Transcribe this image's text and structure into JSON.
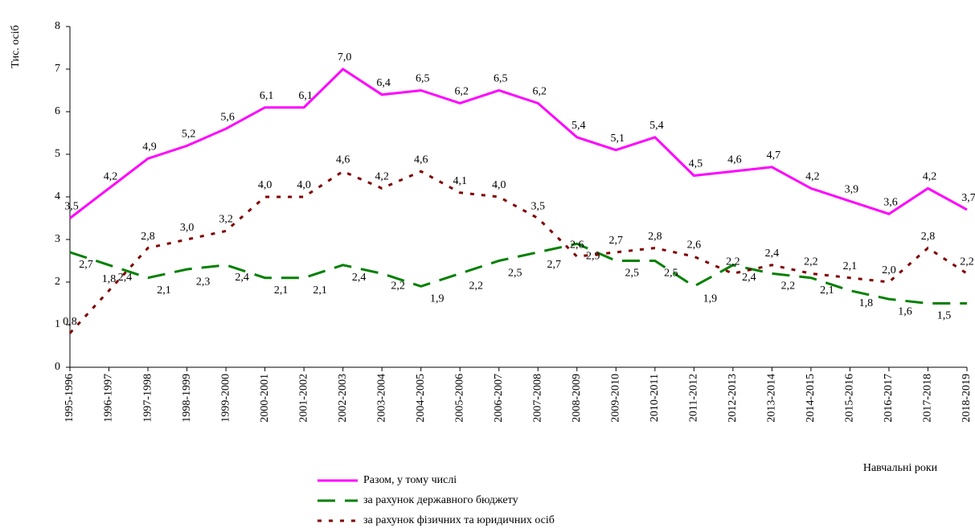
{
  "chart_data": {
    "type": "line",
    "y_label": "Тис. осіб",
    "x_label": "Навчальні роки",
    "categories": [
      "1995-1996",
      "1996-1997",
      "1997-1998",
      "1998-1999",
      "1999-2000",
      "2000-2001",
      "2001-2002",
      "2002-2003",
      "2003-2004",
      "2004-2005",
      "2005-2006",
      "2006-2007",
      "2007-2008",
      "2008-2009",
      "2009-2010",
      "2010-2011",
      "2011-2012",
      "2012-2013",
      "2013-2014",
      "2014-2015",
      "2015-2016",
      "2016-2017",
      "2017-2018",
      "2018-2019"
    ],
    "series": [
      {
        "name": "Разом, у тому числі",
        "color": "#ff00ff",
        "dash": "solid",
        "values": [
          3.5,
          4.2,
          4.9,
          5.2,
          5.6,
          6.1,
          6.1,
          7.0,
          6.4,
          6.5,
          6.2,
          6.5,
          6.2,
          5.4,
          5.1,
          5.4,
          4.5,
          4.6,
          4.7,
          4.2,
          3.9,
          3.6,
          4.2,
          3.7
        ],
        "value_labels": [
          "3,5",
          "4,2",
          "4,9",
          "5,2",
          "5,6",
          "6,1",
          "6,1",
          "7,0",
          "6,4",
          "6,5",
          "6,2",
          "6,5",
          "6,2",
          "5,4",
          "5,1",
          "5,4",
          "4,5",
          "4,6",
          "4,7",
          "4,2",
          "3,9",
          "3,6",
          "4,2",
          "3,7"
        ]
      },
      {
        "name": "за рахунок  державного бюджету",
        "color": "#008000",
        "dash": "long",
        "values": [
          2.7,
          2.4,
          2.1,
          2.3,
          2.4,
          2.1,
          2.1,
          2.4,
          2.2,
          1.9,
          2.2,
          2.5,
          2.7,
          2.9,
          2.5,
          2.5,
          1.9,
          2.4,
          2.2,
          2.1,
          1.8,
          1.6,
          1.5,
          1.5
        ],
        "value_labels": [
          "2,7",
          "2,4",
          "2,1",
          "2,3",
          "2,4",
          "2,1",
          "2,1",
          "2,4",
          "2,2",
          "1,9",
          "2,2",
          "2,5",
          "2,7",
          "2,9",
          "2,5",
          "2,5",
          "1,9",
          "2,4",
          "2,2",
          "2,1",
          "1,8",
          "1,6",
          "1,5",
          "1,5"
        ]
      },
      {
        "name": "за рахунок фізичних та юридичних осіб",
        "color": "#800000",
        "dash": "dot",
        "values": [
          0.8,
          1.8,
          2.8,
          3.0,
          3.2,
          4.0,
          4.0,
          4.6,
          4.2,
          4.6,
          4.1,
          4.0,
          3.5,
          2.6,
          2.7,
          2.8,
          2.6,
          2.2,
          2.4,
          2.2,
          2.1,
          2.0,
          2.8,
          2.2
        ],
        "value_labels": [
          "0,8",
          "1,8",
          "2,8",
          "3,0",
          "3,2",
          "4,0",
          "4,0",
          "4,6",
          "4,2",
          "4,6",
          "4,1",
          "4,0",
          "3,5",
          "2,6",
          "2,7",
          "2,8",
          "2,6",
          "2,2",
          "2,4",
          "2,2",
          "2,1",
          "2,0",
          "2,8",
          "2,2"
        ]
      }
    ],
    "ylim": [
      0,
      8
    ],
    "yticks": [
      0,
      1,
      2,
      3,
      4,
      5,
      6,
      7,
      8
    ],
    "grid": false
  }
}
